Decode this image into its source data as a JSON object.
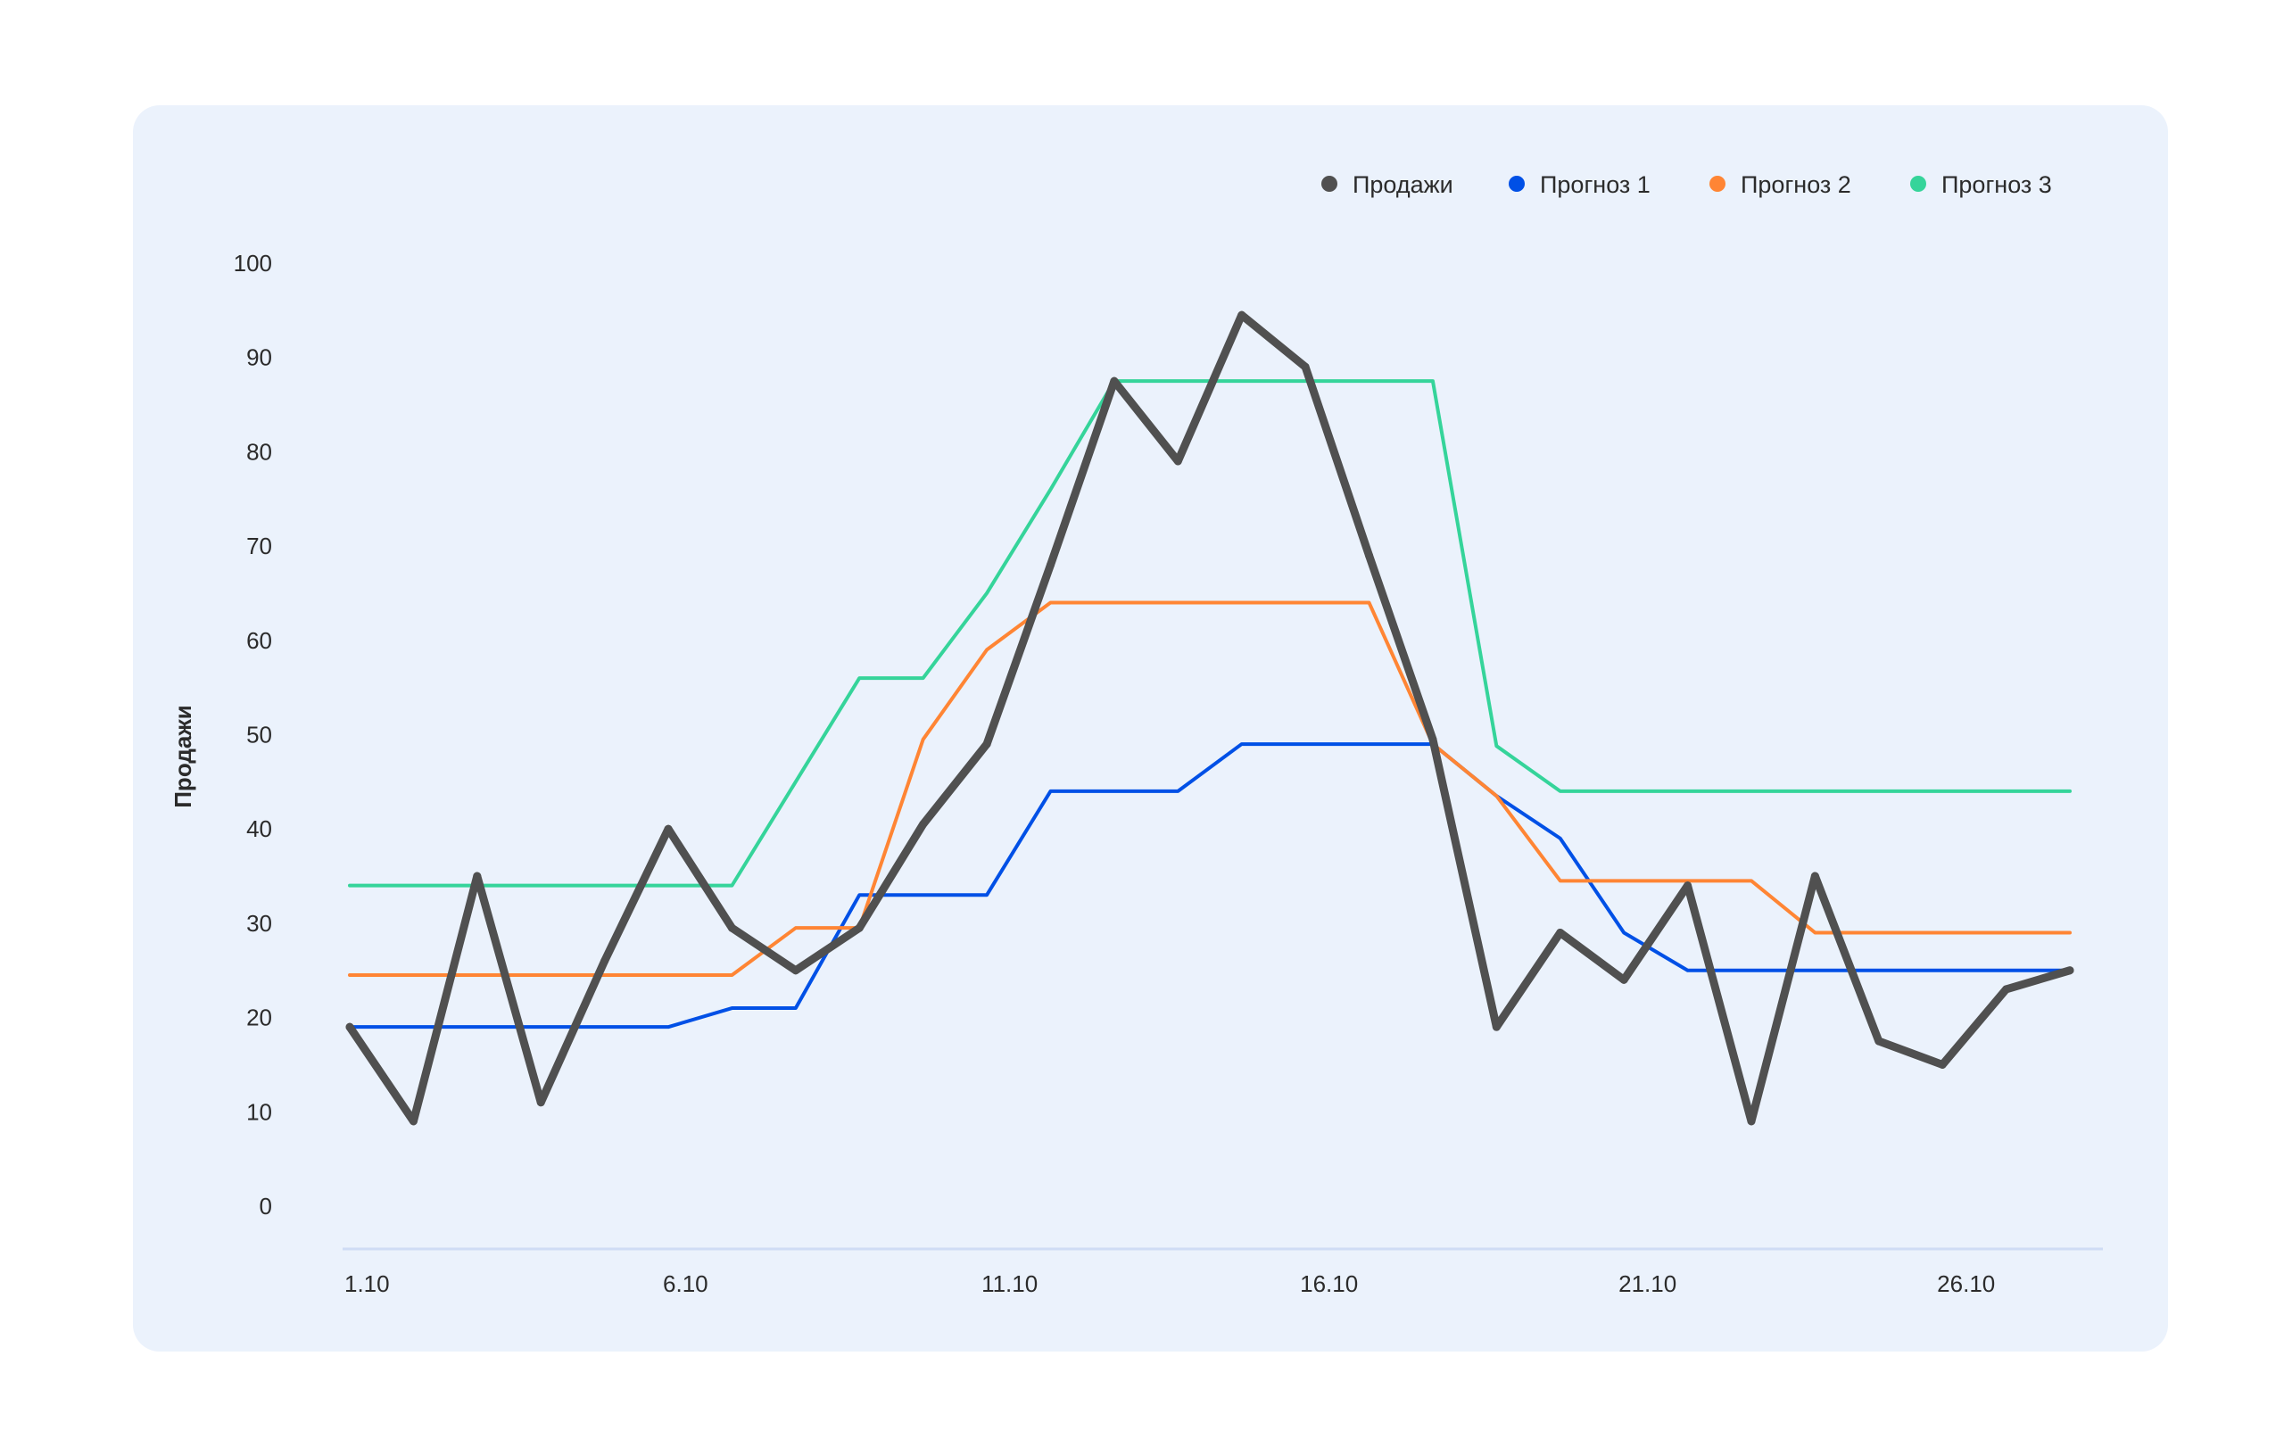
{
  "chart_data": {
    "type": "line",
    "title": "",
    "xlabel": "",
    "ylabel": "Продажи",
    "ylim": [
      0,
      100
    ],
    "yticks": [
      0,
      10,
      20,
      30,
      40,
      50,
      60,
      70,
      80,
      90,
      100
    ],
    "grid": false,
    "legend_position": "top-right",
    "x": [
      "1.10",
      "2.10",
      "3.10",
      "4.10",
      "5.10",
      "6.10",
      "7.10",
      "8.10",
      "9.10",
      "10.10",
      "11.10",
      "12.10",
      "13.10",
      "14.10",
      "15.10",
      "16.10",
      "17.10",
      "18.10",
      "19.10",
      "20.10",
      "21.10",
      "22.10",
      "23.10",
      "24.10",
      "25.10",
      "26.10",
      "27.10",
      "28.10"
    ],
    "xtick_labels": [
      "1.10",
      "6.10",
      "11.10",
      "16.10",
      "21.10",
      "26.10"
    ],
    "series": [
      {
        "name": "Продажи",
        "color": "#505050",
        "values": [
          19,
          9,
          35,
          11,
          26,
          40,
          29.5,
          25,
          29.5,
          40.5,
          49,
          68,
          87.5,
          79,
          94.5,
          89,
          69,
          49.5,
          19,
          29,
          24,
          34,
          9,
          35,
          17.5,
          15,
          23,
          25
        ]
      },
      {
        "name": "Прогноз 1",
        "color": "#0050e6",
        "values": [
          19,
          19,
          19,
          19,
          19,
          19,
          21,
          21,
          33,
          33,
          33,
          44,
          44,
          44,
          49,
          49,
          49,
          49,
          43.5,
          39,
          29,
          25,
          25,
          25,
          25,
          25,
          25,
          25
        ]
      },
      {
        "name": "Прогноз 2",
        "color": "#ff8534",
        "values": [
          24.5,
          24.5,
          24.5,
          24.5,
          24.5,
          24.5,
          24.5,
          29.5,
          29.5,
          49.5,
          59,
          64,
          64,
          64,
          64,
          64,
          64,
          49,
          43.5,
          34.5,
          34.5,
          34.5,
          34.5,
          29,
          29,
          29,
          29,
          29
        ]
      },
      {
        "name": "Прогноз 3",
        "color": "#35d49a",
        "values": [
          34,
          34,
          34,
          34,
          34,
          34,
          34,
          45,
          56,
          56,
          65,
          76,
          87.5,
          87.5,
          87.5,
          87.5,
          87.5,
          87.5,
          48.8,
          44,
          44,
          44,
          44,
          44,
          44,
          44,
          44,
          44
        ]
      }
    ]
  },
  "colors": {
    "card_background": "#ebf2fc",
    "baseline": "#cfdcf5"
  }
}
